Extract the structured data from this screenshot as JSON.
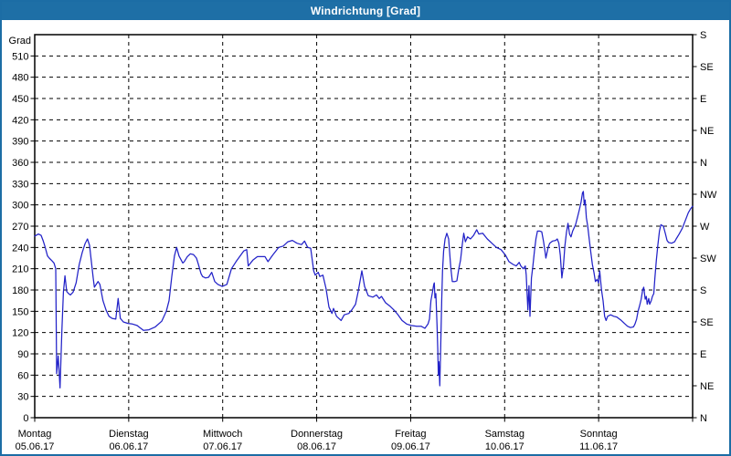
{
  "window": {
    "title": "Windrichtung [Grad]",
    "title_bar_color": "#1e6fa6",
    "border_color": "#1c6da5",
    "background_color": "#ffffff"
  },
  "chart_data": {
    "type": "line",
    "title": "Windrichtung [Grad]",
    "grid": {
      "enabled": true,
      "dash": "4 4",
      "color": "#000000"
    },
    "frame_color": "#000000",
    "text_color": "#000000",
    "y_axis": {
      "label": "Grad",
      "min": 0,
      "max": 540,
      "tick_step": 30,
      "ticks": [
        0,
        30,
        60,
        90,
        120,
        150,
        180,
        210,
        240,
        270,
        300,
        330,
        360,
        390,
        420,
        450,
        480,
        510
      ]
    },
    "right_axis": {
      "ticks": [
        {
          "value": 540,
          "label": "S"
        },
        {
          "value": 495,
          "label": "SE"
        },
        {
          "value": 450,
          "label": "E"
        },
        {
          "value": 405,
          "label": "NE"
        },
        {
          "value": 360,
          "label": "N"
        },
        {
          "value": 315,
          "label": "NW"
        },
        {
          "value": 270,
          "label": "W"
        },
        {
          "value": 225,
          "label": "SW"
        },
        {
          "value": 180,
          "label": "S"
        },
        {
          "value": 135,
          "label": "SE"
        },
        {
          "value": 90,
          "label": "E"
        },
        {
          "value": 45,
          "label": "NE"
        },
        {
          "value": 0,
          "label": "N"
        }
      ]
    },
    "x_axis": {
      "num_days": 7,
      "days": [
        {
          "name": "Montag",
          "date": "05.06.17"
        },
        {
          "name": "Dienstag",
          "date": "06.06.17"
        },
        {
          "name": "Mittwoch",
          "date": "07.06.17"
        },
        {
          "name": "Donnerstag",
          "date": "08.06.17"
        },
        {
          "name": "Freitag",
          "date": "09.06.17"
        },
        {
          "name": "Samstag",
          "date": "10.06.17"
        },
        {
          "name": "Sonntag",
          "date": "11.06.17"
        }
      ]
    },
    "series": [
      {
        "name": "Windrichtung",
        "color": "#2222c8",
        "points": [
          [
            0.0,
            256
          ],
          [
            0.039,
            259
          ],
          [
            0.068,
            257
          ],
          [
            0.088,
            250
          ],
          [
            0.11,
            241
          ],
          [
            0.136,
            228
          ],
          [
            0.155,
            225
          ],
          [
            0.185,
            221
          ],
          [
            0.205,
            218
          ],
          [
            0.224,
            210
          ],
          [
            0.233,
            62
          ],
          [
            0.25,
            87
          ],
          [
            0.269,
            42
          ],
          [
            0.289,
            122
          ],
          [
            0.305,
            177
          ],
          [
            0.322,
            200
          ],
          [
            0.34,
            178
          ],
          [
            0.36,
            175
          ],
          [
            0.379,
            173
          ],
          [
            0.408,
            177
          ],
          [
            0.44,
            190
          ],
          [
            0.473,
            216
          ],
          [
            0.506,
            233
          ],
          [
            0.535,
            245
          ],
          [
            0.561,
            252
          ],
          [
            0.583,
            243
          ],
          [
            0.61,
            212
          ],
          [
            0.622,
            197
          ],
          [
            0.635,
            184
          ],
          [
            0.674,
            192
          ],
          [
            0.693,
            188
          ],
          [
            0.726,
            165
          ],
          [
            0.758,
            152
          ],
          [
            0.79,
            143
          ],
          [
            0.823,
            140
          ],
          [
            0.862,
            139
          ],
          [
            0.888,
            168
          ],
          [
            0.911,
            140
          ],
          [
            0.943,
            135
          ],
          [
            0.992,
            133
          ],
          [
            1.04,
            132
          ],
          [
            1.089,
            130
          ],
          [
            1.157,
            123
          ],
          [
            1.215,
            124
          ],
          [
            1.283,
            128
          ],
          [
            1.351,
            136
          ],
          [
            1.4,
            150
          ],
          [
            1.429,
            165
          ],
          [
            1.458,
            199
          ],
          [
            1.487,
            228
          ],
          [
            1.51,
            240
          ],
          [
            1.535,
            228
          ],
          [
            1.559,
            222
          ],
          [
            1.575,
            218
          ],
          [
            1.591,
            220
          ],
          [
            1.624,
            227
          ],
          [
            1.656,
            231
          ],
          [
            1.689,
            230
          ],
          [
            1.721,
            225
          ],
          [
            1.737,
            218
          ],
          [
            1.769,
            203
          ],
          [
            1.786,
            199
          ],
          [
            1.818,
            197
          ],
          [
            1.85,
            198
          ],
          [
            1.883,
            205
          ],
          [
            1.915,
            192
          ],
          [
            1.948,
            188
          ],
          [
            1.996,
            185
          ],
          [
            2.045,
            188
          ],
          [
            2.093,
            210
          ],
          [
            2.142,
            220
          ],
          [
            2.223,
            235
          ],
          [
            2.256,
            237
          ],
          [
            2.272,
            214
          ],
          [
            2.321,
            222
          ],
          [
            2.369,
            227
          ],
          [
            2.45,
            227
          ],
          [
            2.482,
            220
          ],
          [
            2.531,
            229
          ],
          [
            2.596,
            240
          ],
          [
            2.644,
            242
          ],
          [
            2.693,
            248
          ],
          [
            2.742,
            250
          ],
          [
            2.79,
            246
          ],
          [
            2.839,
            244
          ],
          [
            2.871,
            249
          ],
          [
            2.904,
            240
          ],
          [
            2.936,
            239
          ],
          [
            2.968,
            207
          ],
          [
            2.985,
            201
          ],
          [
            3.017,
            205
          ],
          [
            3.033,
            199
          ],
          [
            3.066,
            201
          ],
          [
            3.099,
            182
          ],
          [
            3.131,
            156
          ],
          [
            3.163,
            147
          ],
          [
            3.179,
            154
          ],
          [
            3.211,
            143
          ],
          [
            3.244,
            139
          ],
          [
            3.26,
            137
          ],
          [
            3.293,
            145
          ],
          [
            3.342,
            147
          ],
          [
            3.374,
            152
          ],
          [
            3.413,
            160
          ],
          [
            3.442,
            178
          ],
          [
            3.481,
            207
          ],
          [
            3.51,
            185
          ],
          [
            3.549,
            172
          ],
          [
            3.597,
            170
          ],
          [
            3.636,
            173
          ],
          [
            3.665,
            168
          ],
          [
            3.69,
            171
          ],
          [
            3.733,
            162
          ],
          [
            3.782,
            157
          ],
          [
            3.821,
            152
          ],
          [
            3.86,
            146
          ],
          [
            3.908,
            137
          ],
          [
            3.957,
            132
          ],
          [
            4.006,
            130
          ],
          [
            4.064,
            129
          ],
          [
            4.112,
            129
          ],
          [
            4.151,
            126
          ],
          [
            4.184,
            132
          ],
          [
            4.2,
            139
          ],
          [
            4.216,
            165
          ],
          [
            4.232,
            177
          ],
          [
            4.246,
            188
          ],
          [
            4.252,
            190
          ],
          [
            4.258,
            169
          ],
          [
            4.268,
            175
          ],
          [
            4.281,
            130
          ],
          [
            4.288,
            96
          ],
          [
            4.294,
            60
          ],
          [
            4.3,
            79
          ],
          [
            4.31,
            45
          ],
          [
            4.32,
            100
          ],
          [
            4.33,
            165
          ],
          [
            4.339,
            207
          ],
          [
            4.351,
            235
          ],
          [
            4.366,
            252
          ],
          [
            4.385,
            260
          ],
          [
            4.404,
            252
          ],
          [
            4.427,
            212
          ],
          [
            4.443,
            192
          ],
          [
            4.472,
            192
          ],
          [
            4.492,
            193
          ],
          [
            4.512,
            210
          ],
          [
            4.531,
            222
          ],
          [
            4.55,
            245
          ],
          [
            4.565,
            260
          ],
          [
            4.582,
            248
          ],
          [
            4.605,
            255
          ],
          [
            4.637,
            252
          ],
          [
            4.67,
            257
          ],
          [
            4.703,
            265
          ],
          [
            4.725,
            259
          ],
          [
            4.767,
            260
          ],
          [
            4.815,
            252
          ],
          [
            4.864,
            246
          ],
          [
            4.913,
            240
          ],
          [
            4.961,
            237
          ],
          [
            5.01,
            229
          ],
          [
            5.046,
            220
          ],
          [
            5.091,
            216
          ],
          [
            5.123,
            214
          ],
          [
            5.155,
            219
          ],
          [
            5.172,
            214
          ],
          [
            5.198,
            210
          ],
          [
            5.22,
            214
          ],
          [
            5.23,
            201
          ],
          [
            5.247,
            152
          ],
          [
            5.259,
            186
          ],
          [
            5.269,
            143
          ],
          [
            5.285,
            197
          ],
          [
            5.301,
            214
          ],
          [
            5.317,
            235
          ],
          [
            5.333,
            252
          ],
          [
            5.349,
            263
          ],
          [
            5.375,
            263
          ],
          [
            5.395,
            262
          ],
          [
            5.414,
            248
          ],
          [
            5.431,
            233
          ],
          [
            5.439,
            225
          ],
          [
            5.463,
            240
          ],
          [
            5.479,
            246
          ],
          [
            5.511,
            249
          ],
          [
            5.544,
            250
          ],
          [
            5.56,
            252
          ],
          [
            5.577,
            246
          ],
          [
            5.592,
            229
          ],
          [
            5.609,
            197
          ],
          [
            5.625,
            214
          ],
          [
            5.641,
            242
          ],
          [
            5.657,
            261
          ],
          [
            5.674,
            274
          ],
          [
            5.69,
            259
          ],
          [
            5.706,
            255
          ],
          [
            5.723,
            263
          ],
          [
            5.755,
            272
          ],
          [
            5.774,
            282
          ],
          [
            5.794,
            293
          ],
          [
            5.813,
            304
          ],
          [
            5.828,
            317
          ],
          [
            5.837,
            319
          ],
          [
            5.847,
            300
          ],
          [
            5.857,
            307
          ],
          [
            5.869,
            282
          ],
          [
            5.884,
            270
          ],
          [
            5.901,
            250
          ],
          [
            5.917,
            233
          ],
          [
            5.933,
            216
          ],
          [
            5.95,
            205
          ],
          [
            5.966,
            192
          ],
          [
            5.984,
            195
          ],
          [
            5.999,
            190
          ],
          [
            6.011,
            207
          ],
          [
            6.031,
            180
          ],
          [
            6.047,
            165
          ],
          [
            6.064,
            143
          ],
          [
            6.079,
            137
          ],
          [
            6.096,
            143
          ],
          [
            6.128,
            145
          ],
          [
            6.161,
            143
          ],
          [
            6.193,
            142
          ],
          [
            6.242,
            137
          ],
          [
            6.274,
            133
          ],
          [
            6.307,
            129
          ],
          [
            6.339,
            127
          ],
          [
            6.371,
            128
          ],
          [
            6.387,
            132
          ],
          [
            6.404,
            139
          ],
          [
            6.42,
            150
          ],
          [
            6.436,
            158
          ],
          [
            6.453,
            167
          ],
          [
            6.468,
            180
          ],
          [
            6.48,
            184
          ],
          [
            6.495,
            167
          ],
          [
            6.507,
            171
          ],
          [
            6.517,
            160
          ],
          [
            6.533,
            168
          ],
          [
            6.543,
            160
          ],
          [
            6.56,
            165
          ],
          [
            6.572,
            171
          ],
          [
            6.587,
            175
          ],
          [
            6.598,
            197
          ],
          [
            6.614,
            222
          ],
          [
            6.631,
            244
          ],
          [
            6.647,
            263
          ],
          [
            6.663,
            272
          ],
          [
            6.689,
            270
          ],
          [
            6.711,
            259
          ],
          [
            6.728,
            250
          ],
          [
            6.744,
            247
          ],
          [
            6.776,
            246
          ],
          [
            6.808,
            248
          ],
          [
            6.825,
            252
          ],
          [
            6.857,
            259
          ],
          [
            6.89,
            267
          ],
          [
            6.922,
            278
          ],
          [
            6.954,
            289
          ],
          [
            6.981,
            295
          ],
          [
            7.0,
            298
          ]
        ]
      }
    ]
  }
}
